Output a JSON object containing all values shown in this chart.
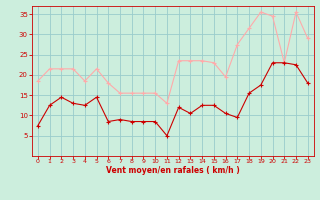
{
  "x": [
    0,
    1,
    2,
    3,
    4,
    5,
    6,
    7,
    8,
    9,
    10,
    11,
    12,
    13,
    14,
    15,
    16,
    17,
    18,
    19,
    20,
    21,
    22,
    23
  ],
  "wind_avg": [
    7.5,
    12.5,
    14.5,
    13,
    12.5,
    14.5,
    8.5,
    9,
    8.5,
    8.5,
    8.5,
    5,
    12,
    10.5,
    12.5,
    12.5,
    10.5,
    9.5,
    15.5,
    17.5,
    23,
    23,
    22.5,
    18
  ],
  "wind_gust": [
    18.5,
    21.5,
    21.5,
    21.5,
    18.5,
    21.5,
    18,
    15.5,
    15.5,
    15.5,
    15.5,
    13,
    23.5,
    23.5,
    23.5,
    23,
    19.5,
    27.5,
    31.5,
    35.5,
    34.5,
    23,
    35.5,
    29
  ],
  "avg_color": "#cc0000",
  "gust_color": "#ffaaaa",
  "bg_color": "#cceedd",
  "grid_color": "#99cccc",
  "xlabel": "Vent moyen/en rafales ( km/h )",
  "xlabel_color": "#cc0000",
  "tick_color": "#cc0000",
  "xlim": [
    -0.5,
    23.5
  ],
  "ylim": [
    0,
    37
  ],
  "yticks": [
    5,
    10,
    15,
    20,
    25,
    30,
    35
  ],
  "xticks": [
    0,
    1,
    2,
    3,
    4,
    5,
    6,
    7,
    8,
    9,
    10,
    11,
    12,
    13,
    14,
    15,
    16,
    17,
    18,
    19,
    20,
    21,
    22,
    23
  ]
}
